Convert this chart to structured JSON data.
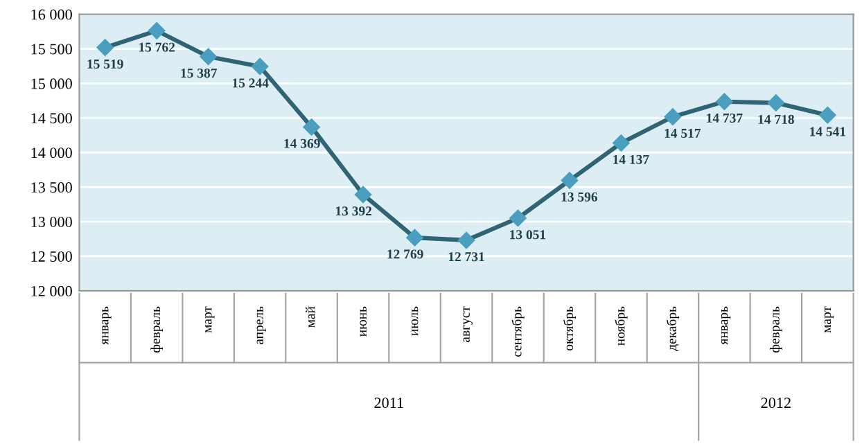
{
  "chart_data": {
    "type": "line",
    "categories": [
      "январь",
      "февраль",
      "март",
      "апрель",
      "май",
      "июнь",
      "июль",
      "август",
      "сентябрь",
      "октябрь",
      "ноябрь",
      "декабрь",
      "январь",
      "февраль",
      "март"
    ],
    "series": [
      {
        "color": "#2f6474",
        "values": [
          15519,
          15762,
          15387,
          15244,
          14369,
          13392,
          12769,
          12731,
          13051,
          13596,
          14137,
          14517,
          14737,
          14718,
          14541
        ]
      }
    ],
    "ylim": [
      12000,
      16000
    ],
    "yticks": [
      {
        "value": 12000,
        "label": "12 000"
      },
      {
        "value": 12500,
        "label": "12 500"
      },
      {
        "value": 13000,
        "label": "13 000"
      },
      {
        "value": 13500,
        "label": "13 500"
      },
      {
        "value": 14000,
        "label": "14 000"
      },
      {
        "value": 14500,
        "label": "14 500"
      },
      {
        "value": 15000,
        "label": "15 000"
      },
      {
        "value": 15500,
        "label": "15 500"
      },
      {
        "value": 16000,
        "label": "16 000"
      }
    ],
    "annotations": [
      "2011",
      "2012"
    ],
    "grid": "y",
    "marker": "diamond",
    "line_style": "solid",
    "data_labels": true
  }
}
